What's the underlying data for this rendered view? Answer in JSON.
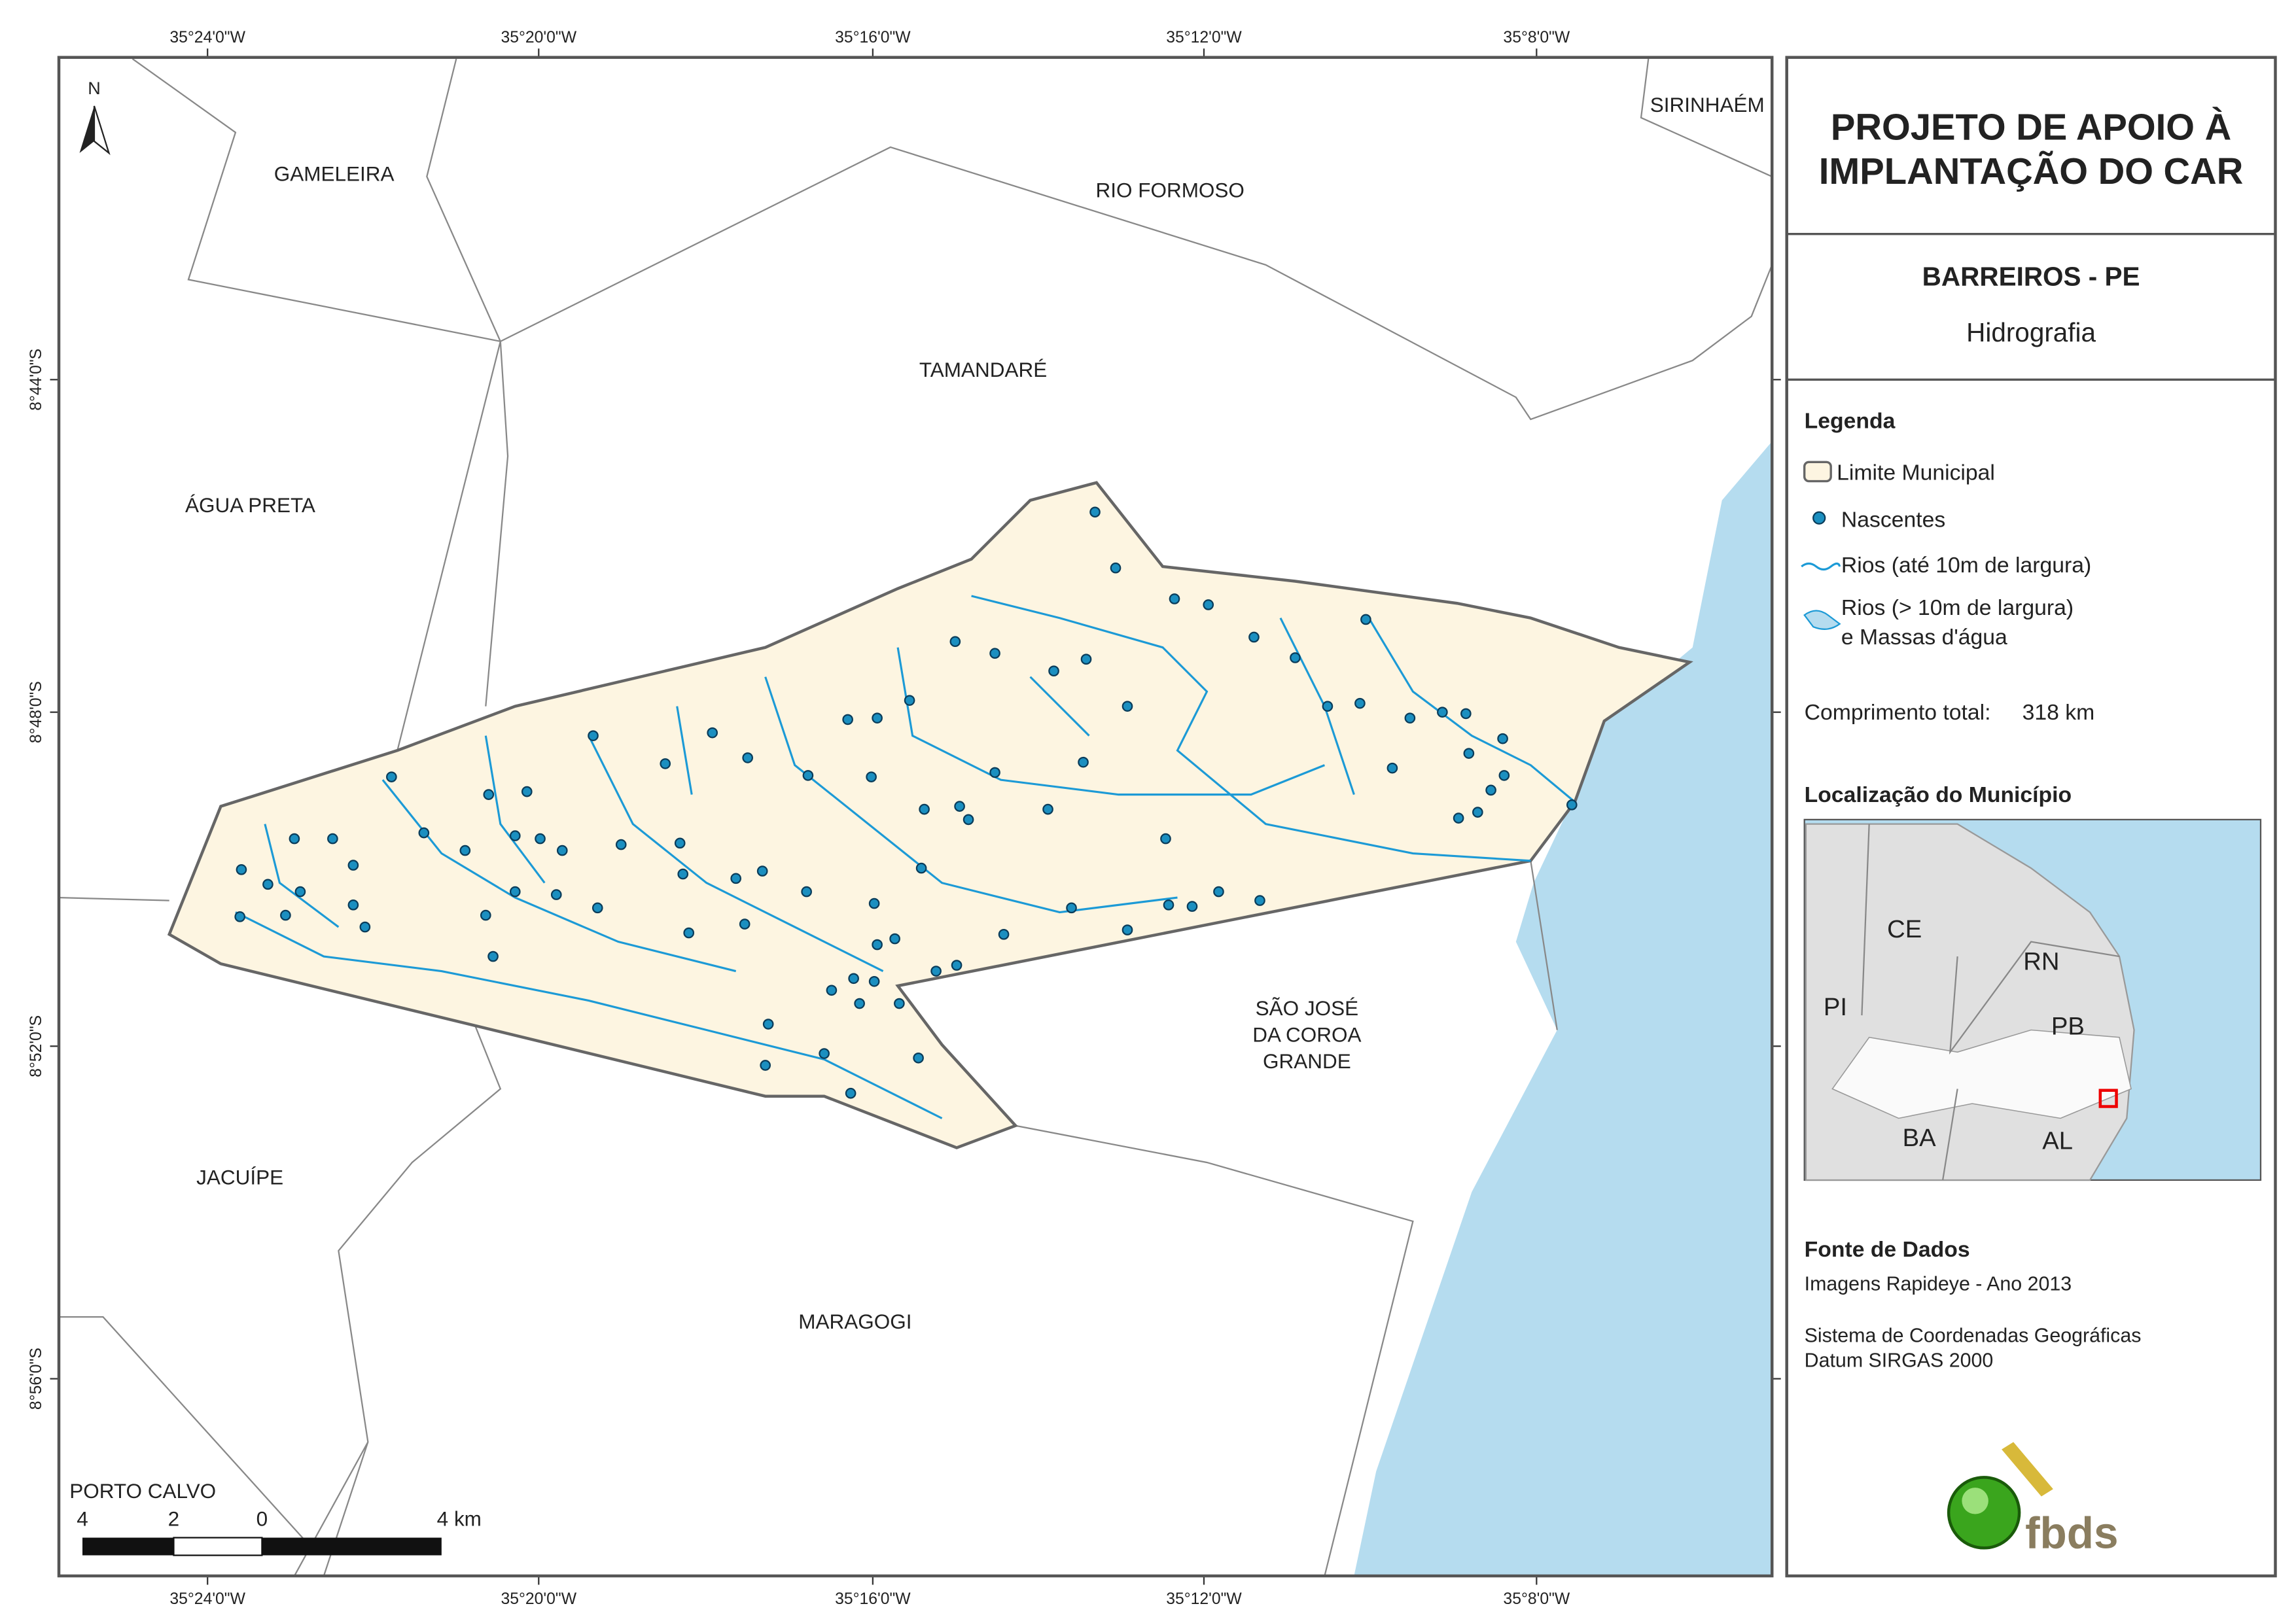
{
  "map": {
    "north": "N",
    "graticule": {
      "x_labels": [
        "35°24'0\"W",
        "35°20'0\"W",
        "35°16'0\"W",
        "35°12'0\"W",
        "35°8'0\"W"
      ],
      "y_labels": [
        "8°44'0\"S",
        "8°48'0\"S",
        "8°52'0\"S",
        "8°56'0\"S"
      ]
    },
    "places": [
      {
        "lines": [
          "GAMELEIRA"
        ]
      },
      {
        "lines": [
          "RIO FORMOSO"
        ]
      },
      {
        "lines": [
          "SIRINHAÉM"
        ]
      },
      {
        "lines": [
          "TAMANDARÉ"
        ]
      },
      {
        "lines": [
          "ÁGUA PRETA"
        ]
      },
      {
        "lines": [
          "SÃO JOSÉ",
          "DA COROA",
          "GRANDE"
        ]
      },
      {
        "lines": [
          "JACUÍPE"
        ]
      },
      {
        "lines": [
          "MARAGOGI"
        ]
      },
      {
        "lines": [
          "PORTO CALVO"
        ]
      }
    ],
    "scale_bar": {
      "labels": [
        "4",
        "2",
        "0",
        "4 km"
      ]
    }
  },
  "panel": {
    "title": [
      "PROJETO DE APOIO À",
      "IMPLANTAÇÃO DO CAR"
    ],
    "municipality": "BARREIROS - PE",
    "theme": "Hidrografia",
    "legend": {
      "title": "Legenda",
      "items": [
        "Limite Municipal",
        "Nascentes",
        "Rios (até 10m de largura)",
        "Rios (> 10m de largura)",
        "e Massas d'água"
      ],
      "length_label": "Comprimento total:",
      "length_value": "318 km"
    },
    "location": {
      "title": "Localização do Município",
      "states": [
        "CE",
        "RN",
        "PI",
        "PB",
        "BA",
        "AL"
      ]
    },
    "sources": {
      "title": "Fonte de Dados",
      "lines": [
        "Imagens Rapideye - Ano 2013",
        "Sistema de Coordenadas Geográficas",
        "Datum SIRGAS 2000"
      ]
    },
    "logo": "fbds"
  }
}
